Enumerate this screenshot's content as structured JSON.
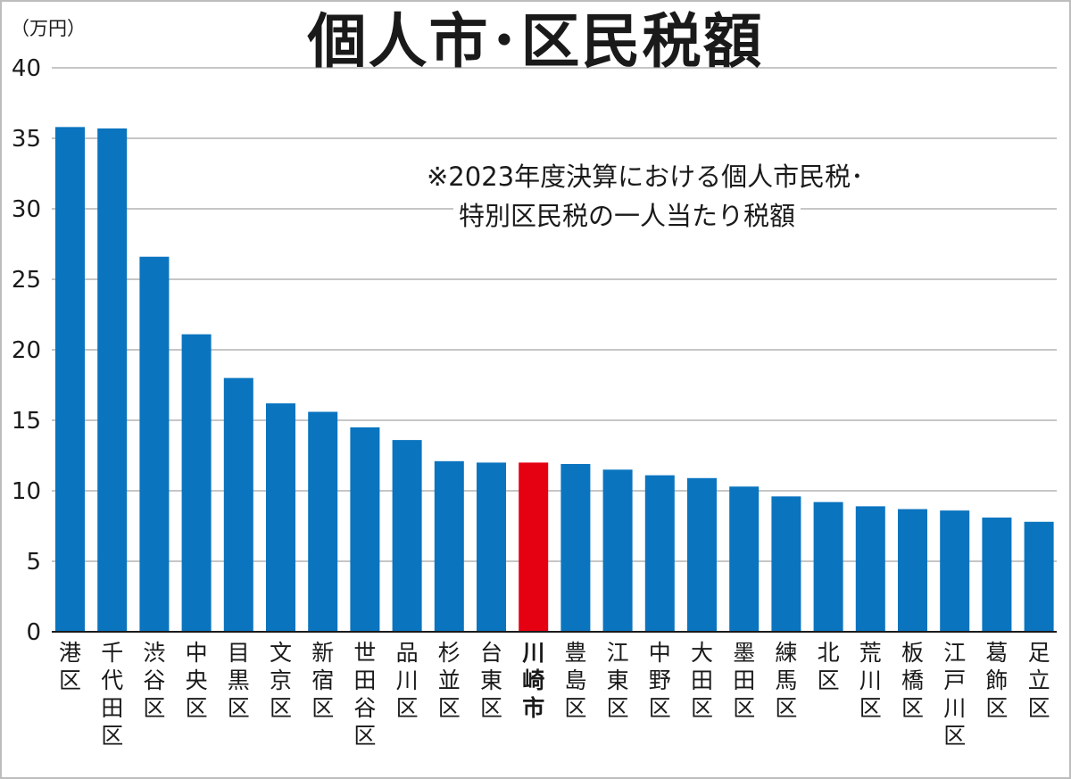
{
  "chart_data": {
    "type": "bar",
    "title": "個人市･区民税額",
    "unit_label": "（万円）",
    "note_line1": "※2023年度決算における個人市民税･",
    "note_line2": "特別区民税の一人当たり税額",
    "ylim": [
      0,
      40
    ],
    "yticks": [
      0,
      5,
      10,
      15,
      20,
      25,
      30,
      35,
      40
    ],
    "grid": true,
    "colors": {
      "bar": "#0a74bf",
      "highlight": "#e50012",
      "grid": "#b4b4b4",
      "axis": "#1a1a1a"
    },
    "highlight": "川崎市",
    "categories": [
      "港区",
      "千代田区",
      "渋谷区",
      "中央区",
      "目黒区",
      "文京区",
      "新宿区",
      "世田谷区",
      "品川区",
      "杉並区",
      "台東区",
      "川崎市",
      "豊島区",
      "江東区",
      "中野区",
      "大田区",
      "墨田区",
      "練馬区",
      "北区",
      "荒川区",
      "板橋区",
      "江戸川区",
      "葛飾区",
      "足立区"
    ],
    "values": [
      35.8,
      35.7,
      26.6,
      21.1,
      18.0,
      16.2,
      15.6,
      14.5,
      13.6,
      12.1,
      12.0,
      12.0,
      11.9,
      11.5,
      11.1,
      10.9,
      10.3,
      9.6,
      9.2,
      8.9,
      8.7,
      8.6,
      8.1,
      7.8
    ]
  }
}
